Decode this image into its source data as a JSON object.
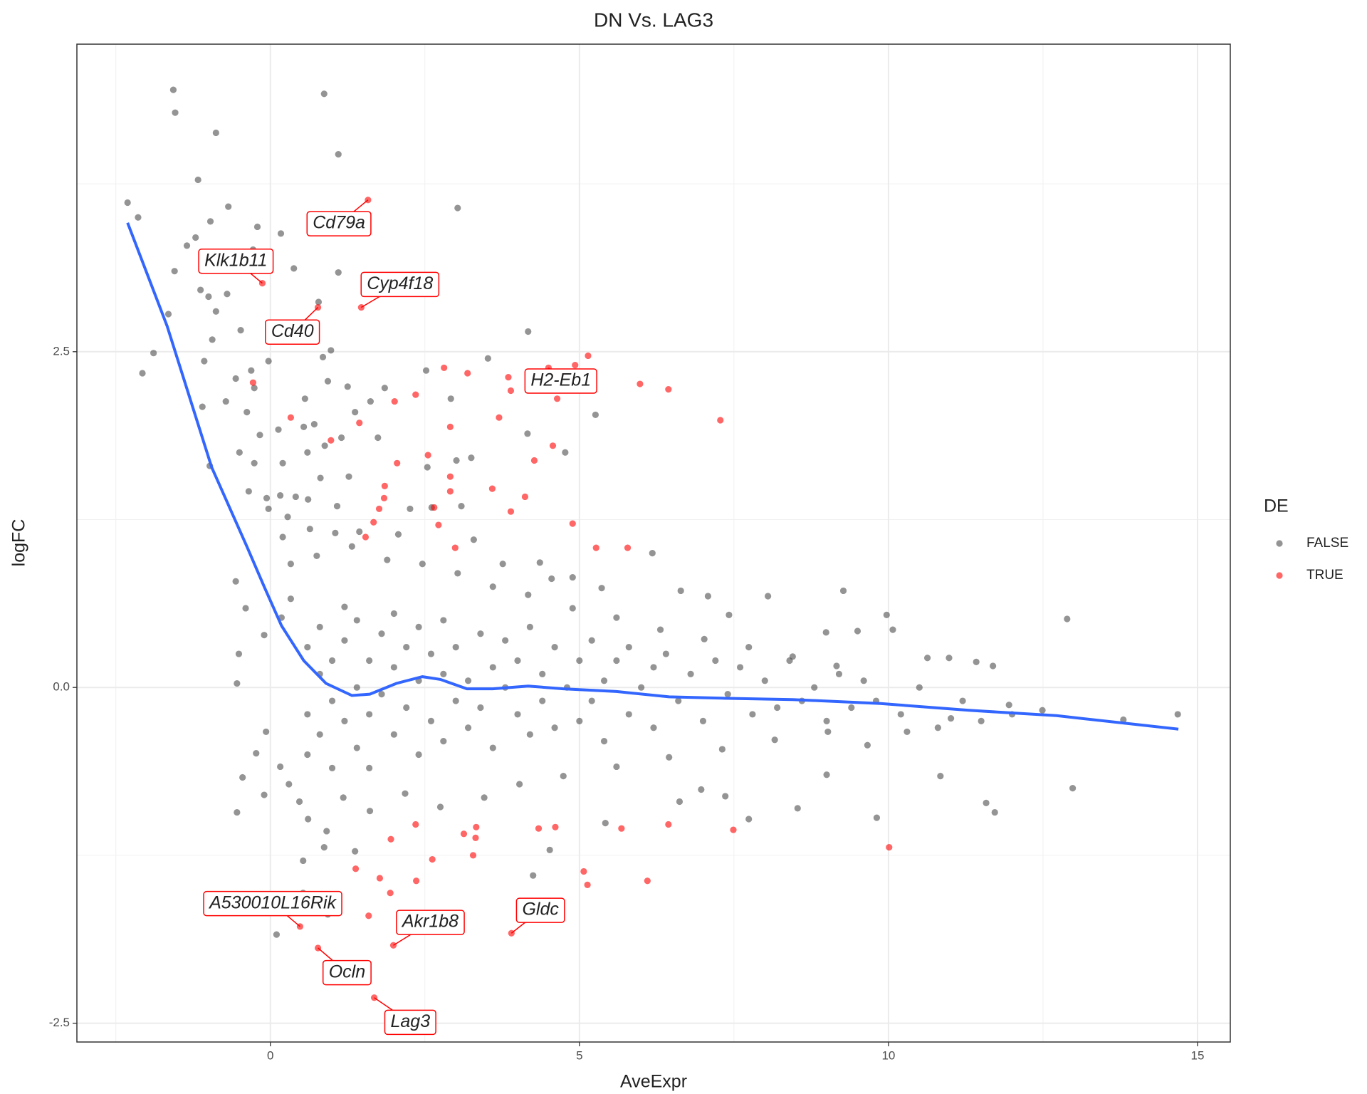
{
  "chart_data": {
    "type": "scatter",
    "title": "DN Vs. LAG3",
    "x_label": "AveExpr",
    "y_label": "logFC",
    "legend_title": "DE",
    "legend_position": "right",
    "grid": true,
    "xlim": [
      -3.13,
      15.53
    ],
    "ylim": [
      -2.64,
      4.79
    ],
    "xticks": [
      0,
      5,
      10,
      15
    ],
    "yticks": [
      -2.5,
      {
        "value": 0,
        "label": "0.0"
      },
      2.5
    ],
    "xminor": [
      -2.5,
      2.5,
      7.5,
      12.5
    ],
    "yminor": [
      -1.25,
      1.25,
      3.75
    ],
    "series": [
      {
        "name": "FALSE",
        "color": "#4d4d4d",
        "x": [
          -1.57,
          -1.54,
          0.87,
          -0.88,
          1.1,
          -1.17,
          -2.31,
          -2.14,
          -0.68,
          -0.97,
          3.03,
          -0.21,
          0.17,
          -1.21,
          -1.35,
          -0.28,
          -1.55,
          0.38,
          1.1,
          -1.13,
          -1.0,
          -0.7,
          0.78,
          -1.65,
          -0.88,
          -0.48,
          -0.94,
          4.17,
          -1.89,
          0.98,
          0.85,
          -0.03,
          -1.07,
          3.52,
          -2.07,
          2.52,
          -0.31,
          -0.56,
          -0.26,
          0.93,
          1.25,
          1.85,
          -0.72,
          -1.1,
          -0.38,
          0.56,
          1.62,
          2.92,
          5.26,
          1.37,
          0.13,
          -0.17,
          0.54,
          0.71,
          1.15,
          1.74,
          4.16,
          -0.5,
          0.6,
          0.88,
          -0.98,
          -0.26,
          0.2,
          0.81,
          1.27,
          2.54,
          3.01,
          3.25,
          4.77,
          -0.35,
          -0.06,
          0.16,
          0.41,
          0.61,
          1.08,
          -0.03,
          2.26,
          3.09,
          2.61,
          0.28,
          0.64,
          1.05,
          1.44,
          2.07,
          3.29,
          0.2,
          6.18,
          -0.56,
          3.76,
          4.36,
          4.55,
          4.89,
          5.36,
          6.64,
          7.08,
          8.05,
          9.27,
          7.42,
          8.99,
          9.5,
          9.97,
          10.07,
          12.89,
          10.63,
          10.98,
          11.42,
          11.69,
          11.95,
          12.49,
          13.8,
          14.68,
          12.98,
          11.58,
          11.72,
          10.84,
          9.81,
          7.74,
          8.53,
          9.0,
          6.97,
          7.36,
          -0.54,
          -0.45,
          -0.1,
          0.1,
          0.53,
          0.93,
          0.53,
          0.87,
          1.37,
          4.25,
          4.52,
          5.42,
          6.62,
          -0.54,
          -0.51,
          -0.1,
          0.18,
          0.33,
          -0.4,
          -0.07,
          -0.23,
          0.16,
          0.3,
          0.47,
          0.61,
          0.91,
          1.18,
          1.61,
          2.18,
          2.75,
          3.46,
          4.03,
          4.74,
          5.6,
          6.45,
          7.31,
          8.16,
          9.02,
          9.66,
          10.3,
          11.01,
          0.33,
          0.75,
          1.32,
          1.89,
          2.46,
          3.03,
          3.6,
          4.17,
          4.89,
          5.6,
          6.31,
          7.02,
          7.74,
          8.45,
          9.16,
          0.6,
          0.6,
          0.6,
          0.8,
          0.8,
          0.8,
          1.0,
          1.0,
          1.0,
          1.2,
          1.2,
          1.2,
          1.4,
          1.4,
          1.4,
          1.6,
          1.6,
          1.6,
          1.8,
          1.8,
          2.0,
          2.0,
          2.0,
          2.2,
          2.2,
          2.4,
          2.4,
          2.4,
          2.6,
          2.6,
          2.8,
          2.8,
          2.8,
          3.0,
          3.0,
          3.2,
          3.2,
          3.4,
          3.4,
          3.6,
          3.6,
          3.8,
          3.8,
          4.0,
          4.0,
          4.2,
          4.2,
          4.4,
          4.4,
          4.6,
          4.6,
          4.8,
          5.0,
          5.0,
          5.2,
          5.2,
          5.4,
          5.4,
          5.6,
          5.8,
          5.8,
          6.0,
          6.2,
          6.2,
          6.4,
          6.6,
          6.8,
          7.0,
          7.2,
          7.4,
          7.6,
          7.8,
          8.0,
          8.2,
          8.4,
          8.6,
          8.8,
          9.0,
          9.2,
          9.4,
          9.6,
          9.8,
          10.2,
          10.5,
          10.8,
          11.2,
          11.5,
          12.0
        ],
        "values": [
          4.45,
          4.28,
          4.42,
          4.13,
          3.97,
          3.78,
          3.61,
          3.5,
          3.58,
          3.47,
          3.57,
          3.43,
          3.38,
          3.35,
          3.29,
          3.26,
          3.1,
          3.12,
          3.09,
          2.96,
          2.91,
          2.93,
          2.87,
          2.78,
          2.8,
          2.66,
          2.59,
          2.65,
          2.49,
          2.51,
          2.46,
          2.43,
          2.43,
          2.45,
          2.34,
          2.36,
          2.36,
          2.3,
          2.23,
          2.28,
          2.24,
          2.23,
          2.13,
          2.09,
          2.05,
          2.15,
          2.13,
          2.15,
          2.03,
          2.05,
          1.92,
          1.88,
          1.94,
          1.96,
          1.86,
          1.86,
          1.89,
          1.75,
          1.75,
          1.8,
          1.65,
          1.67,
          1.67,
          1.56,
          1.57,
          1.64,
          1.69,
          1.71,
          1.75,
          1.46,
          1.41,
          1.43,
          1.42,
          1.4,
          1.35,
          1.33,
          1.33,
          1.35,
          1.34,
          1.27,
          1.18,
          1.15,
          1.16,
          1.14,
          1.1,
          1.12,
          1.0,
          0.79,
          0.92,
          0.93,
          0.81,
          0.82,
          0.74,
          0.72,
          0.68,
          0.68,
          0.72,
          0.54,
          0.41,
          0.42,
          0.54,
          0.43,
          0.51,
          0.22,
          0.22,
          0.19,
          0.16,
          -0.13,
          -0.17,
          -0.24,
          -0.2,
          -0.75,
          -0.86,
          -0.93,
          -0.66,
          -0.97,
          -0.98,
          -0.9,
          -0.65,
          -0.76,
          -0.81,
          -0.93,
          -0.67,
          -0.8,
          -1.84,
          -1.53,
          -1.69,
          -1.29,
          -1.19,
          -1.22,
          -1.4,
          -1.21,
          -1.01,
          -0.85,
          0.03,
          0.25,
          0.39,
          0.52,
          0.66,
          0.59,
          -0.33,
          -0.49,
          -0.59,
          -0.72,
          -0.85,
          -0.98,
          -1.07,
          -0.82,
          -0.92,
          -0.79,
          -0.89,
          -0.82,
          -0.72,
          -0.66,
          -0.59,
          -0.52,
          -0.46,
          -0.39,
          -0.33,
          -0.43,
          -0.33,
          -0.23,
          0.92,
          0.98,
          1.05,
          0.95,
          0.92,
          0.85,
          0.75,
          0.69,
          0.59,
          0.52,
          0.43,
          0.36,
          0.3,
          0.23,
          0.16,
          0.3,
          -0.2,
          -0.5,
          0.1,
          0.45,
          -0.35,
          0.2,
          -0.1,
          -0.6,
          0.35,
          -0.25,
          0.6,
          0.0,
          -0.45,
          0.5,
          0.2,
          -0.2,
          -0.6,
          0.4,
          -0.05,
          0.15,
          -0.35,
          0.55,
          -0.15,
          0.3,
          0.05,
          -0.5,
          0.45,
          0.25,
          -0.25,
          0.1,
          -0.4,
          0.5,
          -0.1,
          0.3,
          0.05,
          -0.3,
          0.4,
          -0.15,
          0.15,
          -0.45,
          0.0,
          0.35,
          -0.2,
          0.2,
          0.45,
          -0.35,
          0.1,
          -0.1,
          0.3,
          -0.3,
          0.0,
          0.2,
          -0.25,
          0.35,
          -0.1,
          0.05,
          -0.4,
          0.2,
          -0.2,
          0.3,
          0.0,
          -0.3,
          0.15,
          0.25,
          -0.1,
          0.1,
          -0.25,
          0.2,
          -0.05,
          0.15,
          -0.2,
          0.05,
          -0.15,
          0.2,
          -0.1,
          0.0,
          -0.25,
          0.1,
          -0.15,
          0.05,
          -0.1,
          -0.2,
          0.0,
          -0.3,
          -0.1,
          -0.25,
          -0.2
        ]
      },
      {
        "name": "TRUE",
        "color": "#ff0000",
        "x": [
          1.58,
          -0.13,
          0.77,
          1.47,
          -0.28,
          5.14,
          4.93,
          4.5,
          3.85,
          5.98,
          6.44,
          2.81,
          3.19,
          2.35,
          2.01,
          3.89,
          4.64,
          3.7,
          7.28,
          0.33,
          1.44,
          2.91,
          0.98,
          4.57,
          2.55,
          4.27,
          2.05,
          2.91,
          3.59,
          1.85,
          4.12,
          2.91,
          1.84,
          2.65,
          1.76,
          3.89,
          1.67,
          2.72,
          4.89,
          1.54,
          2.99,
          5.27,
          5.78,
          2.35,
          3.13,
          3.33,
          4.34,
          4.61,
          5.68,
          6.44,
          7.49,
          1.95,
          3.32,
          3.28,
          2.62,
          10.01,
          1.38,
          5.07,
          1.77,
          5.13,
          6.1,
          2.36,
          1.94,
          1.59,
          0.48,
          3.9,
          1.99,
          0.77,
          1.68
        ],
        "values": [
          3.63,
          3.01,
          2.83,
          2.83,
          2.27,
          2.47,
          2.4,
          2.38,
          2.31,
          2.26,
          2.22,
          2.38,
          2.34,
          2.18,
          2.13,
          2.21,
          2.15,
          2.01,
          1.99,
          2.01,
          1.97,
          1.94,
          1.84,
          1.8,
          1.73,
          1.69,
          1.67,
          1.57,
          1.48,
          1.5,
          1.42,
          1.46,
          1.41,
          1.34,
          1.33,
          1.31,
          1.23,
          1.21,
          1.22,
          1.12,
          1.04,
          1.04,
          1.04,
          -1.02,
          -1.09,
          -1.04,
          -1.05,
          -1.04,
          -1.05,
          -1.02,
          -1.06,
          -1.13,
          -1.12,
          -1.25,
          -1.28,
          -1.19,
          -1.35,
          -1.37,
          -1.42,
          -1.47,
          -1.44,
          -1.44,
          -1.53,
          -1.7,
          -1.78,
          -1.83,
          -1.92,
          -1.94,
          -2.31
        ],
        "point_labels": [
          "Cd79a",
          "Klk1b11",
          "Cd40",
          "Cyp4f18",
          null,
          null,
          null,
          "H2-Eb1",
          null,
          null,
          null,
          null,
          null,
          null,
          null,
          null,
          null,
          null,
          null,
          null,
          null,
          null,
          null,
          null,
          null,
          null,
          null,
          null,
          null,
          null,
          null,
          null,
          null,
          null,
          null,
          null,
          null,
          null,
          null,
          null,
          null,
          null,
          null,
          null,
          null,
          null,
          null,
          null,
          null,
          null,
          null,
          null,
          null,
          null,
          null,
          null,
          null,
          null,
          null,
          null,
          null,
          null,
          null,
          null,
          "A530010L16Rik",
          "Gldc",
          "Akr1b8",
          "Ocln",
          "Lag3"
        ]
      }
    ],
    "smooth": {
      "color": "#3366ff",
      "x": [
        -2.31,
        -1.67,
        -0.95,
        -0.38,
        -0.1,
        0.18,
        0.54,
        0.9,
        1.32,
        1.61,
        2.04,
        2.46,
        2.75,
        3.18,
        3.6,
        4.17,
        4.74,
        5.6,
        6.45,
        7.31,
        8.45,
        9.87,
        11.3,
        12.72,
        14.69
      ],
      "y": [
        3.46,
        2.69,
        1.64,
        1.05,
        0.75,
        0.46,
        0.2,
        0.03,
        -0.06,
        -0.05,
        0.03,
        0.08,
        0.06,
        -0.01,
        -0.01,
        0.01,
        -0.01,
        -0.03,
        -0.07,
        -0.08,
        -0.09,
        -0.12,
        -0.17,
        -0.21,
        -0.31
      ]
    }
  }
}
